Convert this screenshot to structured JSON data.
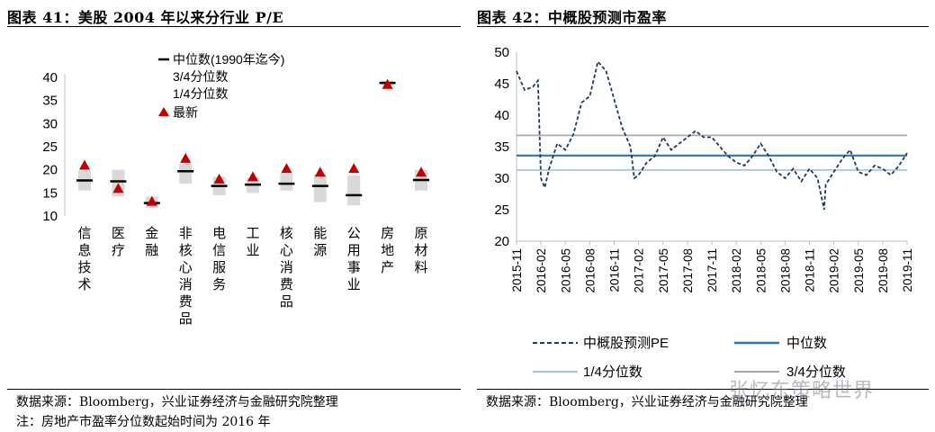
{
  "left_panel": {
    "title": "图表 41：美股 2004 年以来分行业 P/E",
    "source": "数据来源：Bloomberg，兴业证券经济与金融研究院整理",
    "note": "注：房地产市盈率分位数起始时间为 2016 年"
  },
  "right_panel": {
    "title": "图表 42：中概股预测市盈率",
    "source": "数据来源：Bloomberg，兴业证券经济与金融研究院整理"
  },
  "watermark": "张忆东策略世界",
  "colors": {
    "marker_red": "#c00000",
    "median_black": "#000000",
    "range_gray": "#d9d9d9",
    "pe_line": "#1f3864",
    "median_line": "#2e75b6",
    "q1_line": "#9dc3e6",
    "q3_line": "#a6a6a6"
  },
  "chart_data": [
    {
      "type": "scatter",
      "title": "",
      "categories": [
        "信息技术",
        "医疗",
        "金融",
        "非核心消费品",
        "电信服务",
        "工业",
        "核心消费品",
        "能源",
        "公用事业",
        "房地产",
        "原材料"
      ],
      "ylim": [
        10,
        40
      ],
      "yticks": [
        10,
        15,
        20,
        25,
        30,
        35,
        40
      ],
      "legend": [
        "中位数(1990年迄今)",
        "3/4分位数",
        "1/4分位数",
        "最新"
      ],
      "legend_position": "top",
      "series": [
        {
          "name": "最新",
          "values": [
            21,
            16,
            13.2,
            22.5,
            18,
            18.5,
            20.3,
            19.5,
            20.3,
            38.5,
            19.5
          ]
        },
        {
          "name": "中位数(1990年迄今)",
          "values": [
            17.7,
            17.5,
            12.8,
            19.7,
            16.5,
            16.8,
            17.0,
            16.5,
            14.5,
            38.8,
            17.8
          ]
        },
        {
          "name": "3/4分位数",
          "values": [
            19.8,
            20.0,
            14.2,
            21.3,
            18.5,
            18.3,
            19.3,
            19.0,
            18.8,
            39.3,
            20.0
          ]
        },
        {
          "name": "1/4分位数",
          "values": [
            15.5,
            14.2,
            11.8,
            17.0,
            14.5,
            15.0,
            15.5,
            13.0,
            12.3,
            38.2,
            15.5
          ]
        }
      ]
    },
    {
      "type": "line",
      "title": "",
      "xlim": [
        "2015-11",
        "2019-11"
      ],
      "xticks": [
        "2015-11",
        "2016-02",
        "2016-05",
        "2016-08",
        "2016-11",
        "2017-02",
        "2017-05",
        "2017-08",
        "2017-11",
        "2018-02",
        "2018-05",
        "2018-08",
        "2018-11",
        "2019-02",
        "2019-05",
        "2019-08",
        "2019-11"
      ],
      "ylim": [
        20,
        50
      ],
      "yticks": [
        20,
        25,
        30,
        35,
        40,
        45,
        50
      ],
      "legend_position": "bottom",
      "series": [
        {
          "name": "中概股预测PE",
          "style": "dashed",
          "x": [
            "2015-11",
            "2015-12",
            "2016-01",
            "2016-01-20",
            "2016-02",
            "2016-02-15",
            "2016-03",
            "2016-04",
            "2016-05",
            "2016-06",
            "2016-07",
            "2016-08",
            "2016-09",
            "2016-10",
            "2016-11",
            "2016-12",
            "2017-01",
            "2017-01-15",
            "2017-02",
            "2017-03",
            "2017-04",
            "2017-05",
            "2017-06",
            "2017-07",
            "2017-08",
            "2017-09",
            "2017-10",
            "2017-11",
            "2017-12",
            "2018-01",
            "2018-02",
            "2018-03",
            "2018-04",
            "2018-05",
            "2018-06",
            "2018-07",
            "2018-08",
            "2018-09",
            "2018-10",
            "2018-11",
            "2018-12",
            "2018-12-25",
            "2019-01",
            "2019-02",
            "2019-03",
            "2019-04",
            "2019-05",
            "2019-06",
            "2019-07",
            "2019-08",
            "2019-09",
            "2019-10",
            "2019-11"
          ],
          "values": [
            47,
            44,
            44.5,
            45.5,
            30,
            28.5,
            31.5,
            35.5,
            34.5,
            37,
            42,
            43,
            48.5,
            47,
            42.5,
            38,
            35,
            30,
            30.5,
            32.5,
            33.5,
            36.5,
            34.5,
            35.5,
            36.5,
            37.5,
            36.5,
            36.5,
            35,
            33.5,
            32.5,
            32,
            33.5,
            35.5,
            33.5,
            31,
            30,
            31.5,
            29.5,
            31.5,
            30,
            25,
            29,
            31,
            33,
            34.5,
            31,
            30.5,
            32,
            31.5,
            30.5,
            32,
            34
          ]
        },
        {
          "name": "中位数",
          "values": [
            33.6
          ]
        },
        {
          "name": "1/4分位数",
          "values": [
            31.3
          ]
        },
        {
          "name": "3/4分位数",
          "values": [
            36.8
          ]
        }
      ]
    }
  ]
}
